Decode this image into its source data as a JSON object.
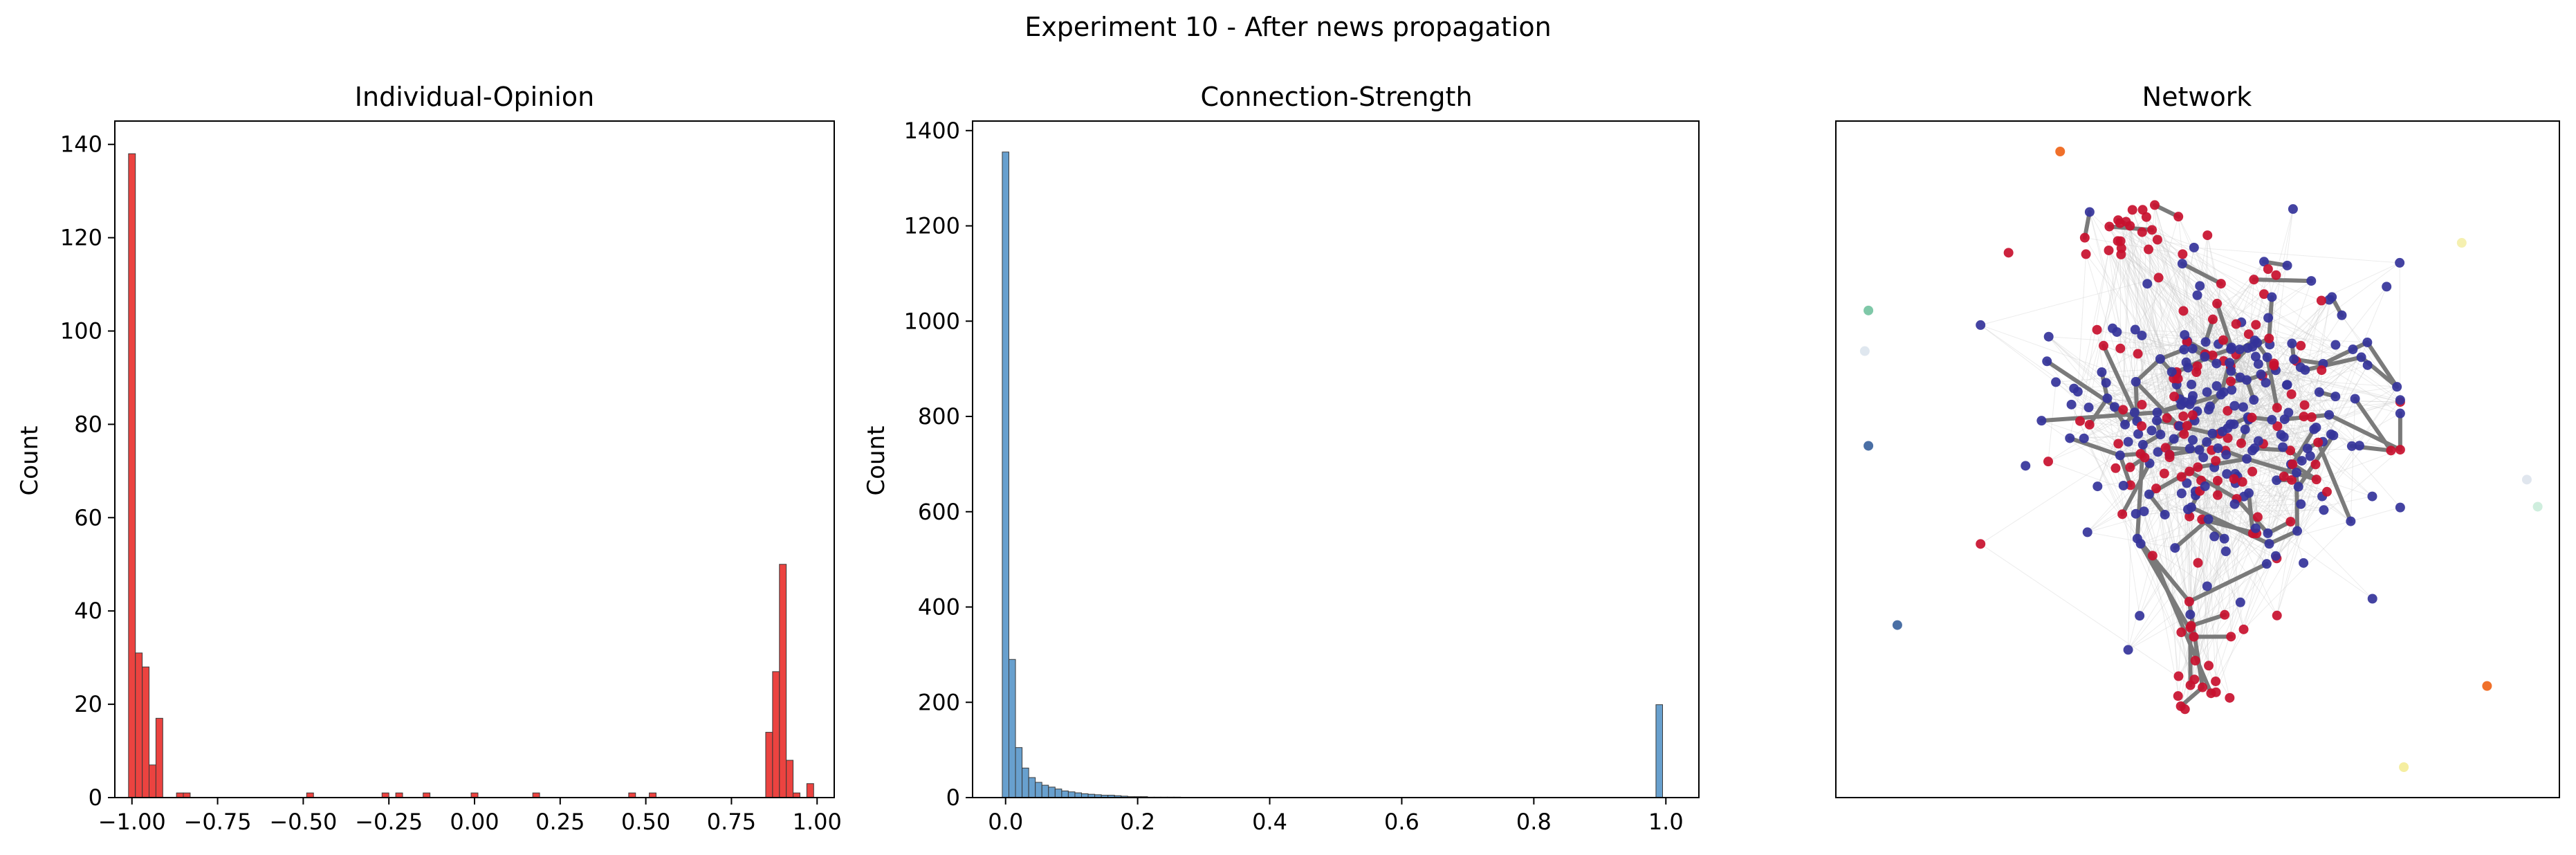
{
  "figure_title": "Experiment 10 - After news propagation",
  "chart_data": [
    {
      "type": "bar",
      "title": "Individual-Opinion",
      "xlabel": "",
      "ylabel": "Count",
      "xlim": [
        -1.05,
        1.05
      ],
      "ylim": [
        0,
        145
      ],
      "xticks": [
        "-1.00",
        "-0.75",
        "-0.50",
        "-0.25",
        "0.00",
        "0.25",
        "0.50",
        "0.75",
        "1.00"
      ],
      "yticks": [
        "0",
        "20",
        "40",
        "60",
        "80",
        "100",
        "120",
        "140"
      ],
      "bin_width": 0.02,
      "bar_color": "#e8221e",
      "bins": [
        {
          "x": -1.0,
          "count": 138
        },
        {
          "x": -0.98,
          "count": 31
        },
        {
          "x": -0.96,
          "count": 28
        },
        {
          "x": -0.94,
          "count": 7
        },
        {
          "x": -0.92,
          "count": 17
        },
        {
          "x": -0.86,
          "count": 1
        },
        {
          "x": -0.84,
          "count": 1
        },
        {
          "x": -0.48,
          "count": 1
        },
        {
          "x": -0.26,
          "count": 1
        },
        {
          "x": -0.22,
          "count": 1
        },
        {
          "x": -0.14,
          "count": 1
        },
        {
          "x": 0.0,
          "count": 1
        },
        {
          "x": 0.18,
          "count": 1
        },
        {
          "x": 0.46,
          "count": 1
        },
        {
          "x": 0.52,
          "count": 1
        },
        {
          "x": 0.86,
          "count": 14
        },
        {
          "x": 0.88,
          "count": 27
        },
        {
          "x": 0.9,
          "count": 50
        },
        {
          "x": 0.92,
          "count": 8
        },
        {
          "x": 0.94,
          "count": 1
        },
        {
          "x": 0.98,
          "count": 3
        }
      ]
    },
    {
      "type": "bar",
      "title": "Connection-Strength",
      "xlabel": "",
      "ylabel": "Count",
      "xlim": [
        -0.05,
        1.05
      ],
      "ylim": [
        0,
        1420
      ],
      "xticks": [
        "0.0",
        "0.2",
        "0.4",
        "0.6",
        "0.8",
        "1.0"
      ],
      "yticks": [
        "0",
        "200",
        "400",
        "600",
        "800",
        "1000",
        "1200",
        "1400"
      ],
      "bin_width": 0.01,
      "bar_color": "#4e8fc5",
      "bins": [
        {
          "x": 0.0,
          "count": 1355
        },
        {
          "x": 0.01,
          "count": 290
        },
        {
          "x": 0.02,
          "count": 105
        },
        {
          "x": 0.03,
          "count": 62
        },
        {
          "x": 0.04,
          "count": 42
        },
        {
          "x": 0.05,
          "count": 32
        },
        {
          "x": 0.06,
          "count": 26
        },
        {
          "x": 0.07,
          "count": 22
        },
        {
          "x": 0.08,
          "count": 18
        },
        {
          "x": 0.09,
          "count": 14
        },
        {
          "x": 0.1,
          "count": 12
        },
        {
          "x": 0.11,
          "count": 10
        },
        {
          "x": 0.12,
          "count": 8
        },
        {
          "x": 0.13,
          "count": 7
        },
        {
          "x": 0.14,
          "count": 6
        },
        {
          "x": 0.15,
          "count": 5
        },
        {
          "x": 0.16,
          "count": 5
        },
        {
          "x": 0.17,
          "count": 4
        },
        {
          "x": 0.18,
          "count": 3
        },
        {
          "x": 0.19,
          "count": 2
        },
        {
          "x": 0.2,
          "count": 2
        },
        {
          "x": 0.21,
          "count": 2
        },
        {
          "x": 0.22,
          "count": 1
        },
        {
          "x": 0.23,
          "count": 1
        },
        {
          "x": 0.24,
          "count": 1
        },
        {
          "x": 0.25,
          "count": 1
        },
        {
          "x": 0.26,
          "count": 1
        },
        {
          "x": 0.99,
          "count": 195
        }
      ]
    },
    {
      "type": "network",
      "title": "Network",
      "description_colors": {
        "negative": "#c8102e",
        "positive": "#34339a",
        "edge_strong": "#7a7a7a"
      },
      "isolated_nodes": [
        {
          "x": 0.31,
          "y": 0.955,
          "color": "#f0702a"
        },
        {
          "x": 0.045,
          "y": 0.72,
          "color": "#7fc8a8"
        },
        {
          "x": 0.04,
          "y": 0.66,
          "color": "#dfe7ef"
        },
        {
          "x": 0.045,
          "y": 0.52,
          "color": "#4a6fa5"
        },
        {
          "x": 0.085,
          "y": 0.255,
          "color": "#4a6fa5"
        },
        {
          "x": 0.865,
          "y": 0.82,
          "color": "#f5f0b0"
        },
        {
          "x": 0.955,
          "y": 0.47,
          "color": "#e0e6ee"
        },
        {
          "x": 0.97,
          "y": 0.43,
          "color": "#cfeede"
        },
        {
          "x": 0.9,
          "y": 0.165,
          "color": "#f0702a"
        },
        {
          "x": 0.785,
          "y": 0.045,
          "color": "#f5eea0"
        }
      ],
      "cluster": {
        "center": [
          0.52,
          0.56
        ],
        "node_count": 330,
        "negative_share": 0.33
      }
    }
  ]
}
